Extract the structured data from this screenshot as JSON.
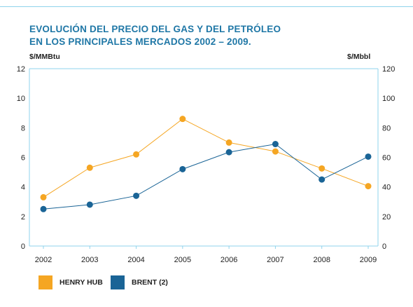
{
  "title_lines": [
    "EVOLUCIÓN DEL PRECIO DEL GAS Y DEL PETRÓLEO",
    "EN LOS PRINCIPALES MERCADOS 2002 – 2009."
  ],
  "colors": {
    "title": "#1f77a6",
    "henry_hub": "#f5a623",
    "brent": "#1a6496",
    "axis": "#8fd3ec",
    "grid": "#e6e6e6"
  },
  "chart_data": {
    "type": "line",
    "title": "EVOLUCIÓN DEL PRECIO DEL GAS Y DEL PETRÓLEO EN LOS PRINCIPALES MERCADOS 2002 – 2009.",
    "x": [
      "2002",
      "2003",
      "2004",
      "2005",
      "2006",
      "2007",
      "2008",
      "2009"
    ],
    "y_left": {
      "label": "$/MMBtu",
      "range": [
        0,
        12
      ],
      "ticks": [
        "0",
        "2",
        "4",
        "6",
        "8",
        "10",
        "12"
      ]
    },
    "y_right": {
      "label": "$/Mbbl",
      "range": [
        0,
        120
      ],
      "ticks": [
        "0",
        "20",
        "40",
        "60",
        "80",
        "100",
        "120"
      ]
    },
    "grid": false,
    "legend_position": "bottom",
    "series": [
      {
        "name": "HENRY HUB",
        "axis": "left",
        "color": "#f5a623",
        "values": [
          3.3,
          5.3,
          6.2,
          8.6,
          7.0,
          6.4,
          5.25,
          4.05
        ]
      },
      {
        "name": "BRENT (2)",
        "axis": "right",
        "color": "#1a6496",
        "values": [
          25,
          28,
          34,
          52,
          63.5,
          69,
          45,
          60.5
        ]
      }
    ]
  }
}
